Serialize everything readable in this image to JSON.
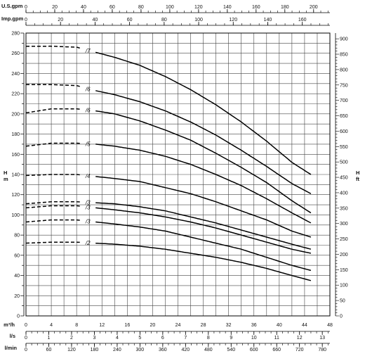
{
  "chart_data": {
    "type": "line",
    "units": {
      "top1": "U.S.gpm",
      "top2": "Imp.gpm",
      "left_h": "H",
      "left_unit": "m",
      "right_h": "H",
      "right_unit": "ft",
      "bottom_m3h": "m³/h",
      "bottom_ls": "l/s",
      "bottom_lmin": "l/min"
    },
    "x_axis_m3h": {
      "range": [
        0,
        48
      ],
      "ticks": [
        0,
        4,
        8,
        12,
        16,
        20,
        24,
        28,
        32,
        36,
        40,
        44,
        48
      ]
    },
    "y_axis_m": {
      "range": [
        0,
        280
      ],
      "ticks": [
        0,
        20,
        40,
        60,
        80,
        100,
        120,
        140,
        160,
        180,
        200,
        220,
        240,
        260,
        280
      ]
    },
    "y_axis_ft": {
      "range": [
        0,
        918.6
      ],
      "ticks": [
        0,
        50,
        100,
        150,
        200,
        250,
        300,
        350,
        400,
        450,
        500,
        550,
        600,
        650,
        700,
        750,
        800,
        850,
        900
      ]
    },
    "x_axis_usgpm": {
      "ticks": [
        0,
        20,
        40,
        60,
        80,
        100,
        120,
        140,
        160,
        180,
        200
      ],
      "per_m3h": 4.4029
    },
    "x_axis_impgpm": {
      "ticks": [
        0,
        20,
        40,
        60,
        80,
        100,
        120,
        140,
        160
      ],
      "per_m3h": 3.6662
    },
    "x_axis_ls": {
      "ticks": [
        0,
        1,
        2,
        3,
        4,
        5,
        6,
        7,
        8,
        9,
        10,
        11,
        12,
        13
      ],
      "per_m3h": 0.27778
    },
    "x_axis_lmin": {
      "ticks": [
        0,
        60,
        120,
        180,
        240,
        300,
        360,
        420,
        480,
        540,
        600,
        660,
        720,
        780
      ],
      "per_m3h": 16.6667
    },
    "series": [
      {
        "name": "/7",
        "x": [
          0,
          4,
          8,
          11,
          14,
          18,
          22,
          26,
          30,
          34,
          38,
          42,
          45
        ],
        "y": [
          267,
          267,
          266,
          261,
          256,
          248,
          237,
          224,
          209,
          192,
          173,
          152,
          140
        ]
      },
      {
        "name": "/6",
        "x": [
          0,
          4,
          8,
          11,
          14,
          18,
          22,
          26,
          30,
          34,
          38,
          42,
          45
        ],
        "y": [
          229,
          229,
          228,
          223,
          219,
          212,
          203,
          192,
          179,
          164,
          148,
          131,
          121
        ]
      },
      {
        "name": "/6",
        "x": [
          0,
          4,
          8,
          11,
          14,
          18,
          22,
          26,
          30,
          34,
          38,
          42,
          45
        ],
        "y": [
          201,
          205,
          205,
          203,
          200,
          193,
          184,
          174,
          161,
          147,
          132,
          114,
          102
        ]
      },
      {
        "name": "/5",
        "x": [
          0,
          4,
          8,
          11,
          14,
          18,
          22,
          26,
          30,
          34,
          38,
          42,
          45
        ],
        "y": [
          168,
          171,
          171,
          170,
          168,
          164,
          158,
          150,
          140,
          129,
          116,
          102,
          92
        ]
      },
      {
        "name": "/4",
        "x": [
          0,
          4,
          8,
          11,
          14,
          18,
          22,
          26,
          30,
          34,
          38,
          42,
          45
        ],
        "y": [
          139,
          140,
          140,
          138,
          136,
          133,
          127,
          121,
          113,
          104,
          95,
          84,
          78
        ]
      },
      {
        "name": "/3",
        "x": [
          0,
          4,
          8,
          11,
          14,
          18,
          22,
          26,
          30,
          34,
          38,
          42,
          45
        ],
        "y": [
          111,
          113,
          113,
          112,
          111,
          108,
          104,
          98,
          92,
          85,
          78,
          71,
          66
        ]
      },
      {
        "name": "/3",
        "x": [
          0,
          4,
          8,
          11,
          14,
          18,
          22,
          26,
          30,
          34,
          38,
          42,
          45
        ],
        "y": [
          107,
          109,
          109,
          107,
          105,
          102,
          98,
          93,
          87,
          80,
          73,
          66,
          62
        ]
      },
      {
        "name": "/3",
        "x": [
          0,
          4,
          8,
          11,
          14,
          18,
          22,
          26,
          30,
          34,
          38,
          42,
          45
        ],
        "y": [
          93,
          95,
          95,
          93,
          91,
          88,
          84,
          78,
          72,
          66,
          58,
          50,
          45
        ]
      },
      {
        "name": "/2",
        "x": [
          0,
          4,
          8,
          11,
          14,
          18,
          22,
          26,
          30,
          34,
          38,
          42,
          45
        ],
        "y": [
          72,
          73,
          73,
          72,
          71,
          69,
          66,
          62,
          58,
          53,
          47,
          40,
          35
        ]
      }
    ],
    "dashed_below_x": 10,
    "grid": true
  }
}
